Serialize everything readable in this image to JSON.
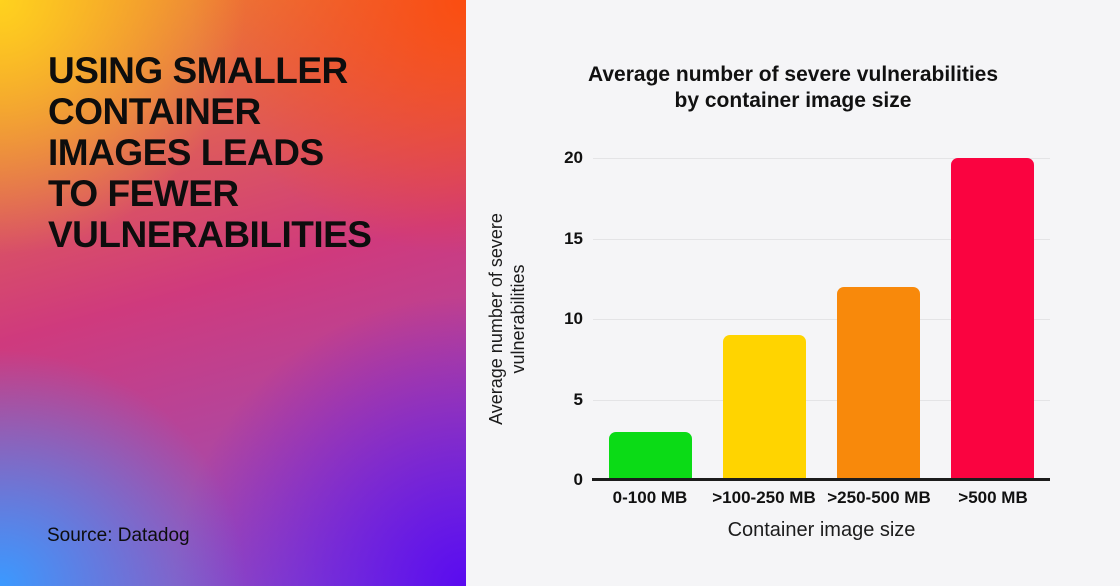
{
  "left_panel": {
    "headline_lines": [
      "USING SMALLER",
      "CONTAINER",
      "IMAGES LEADS",
      "TO FEWER",
      "VULNERABILITIES"
    ],
    "source": "Source: Datadog",
    "gradient_colors": {
      "top_left": "#ffd21e",
      "top_right": "#fb4d10",
      "mid_right": "#cf3a7d",
      "bottom_left": "#3b99ff",
      "bottom_right": "#5a0af0"
    },
    "text_color": "#0d0d0d"
  },
  "chart_data": {
    "type": "bar",
    "title": "Average number of severe vulnerabilities by container image size",
    "title_lines": [
      "Average number of severe vulnerabilities",
      "by container image size"
    ],
    "categories": [
      "0-100 MB",
      ">100-250 MB",
      ">250-500 MB",
      ">500 MB"
    ],
    "values": [
      3,
      9,
      12,
      20
    ],
    "bar_colors": [
      "#0bdb16",
      "#ffd400",
      "#f8890b",
      "#fa0340"
    ],
    "xlabel": "Container image size",
    "ylabel": "Average number of severe vulnerabilities",
    "ylabel_lines": [
      "Average number of severe",
      "vulnerabilities"
    ],
    "yticks": [
      0,
      5,
      10,
      15,
      20
    ],
    "ylim": [
      0,
      20
    ],
    "grid": true,
    "legend_position": "none",
    "background": "#f5f5f7",
    "axis_color": "#1c1c1c",
    "gridline_color": "#e4e4e6"
  }
}
